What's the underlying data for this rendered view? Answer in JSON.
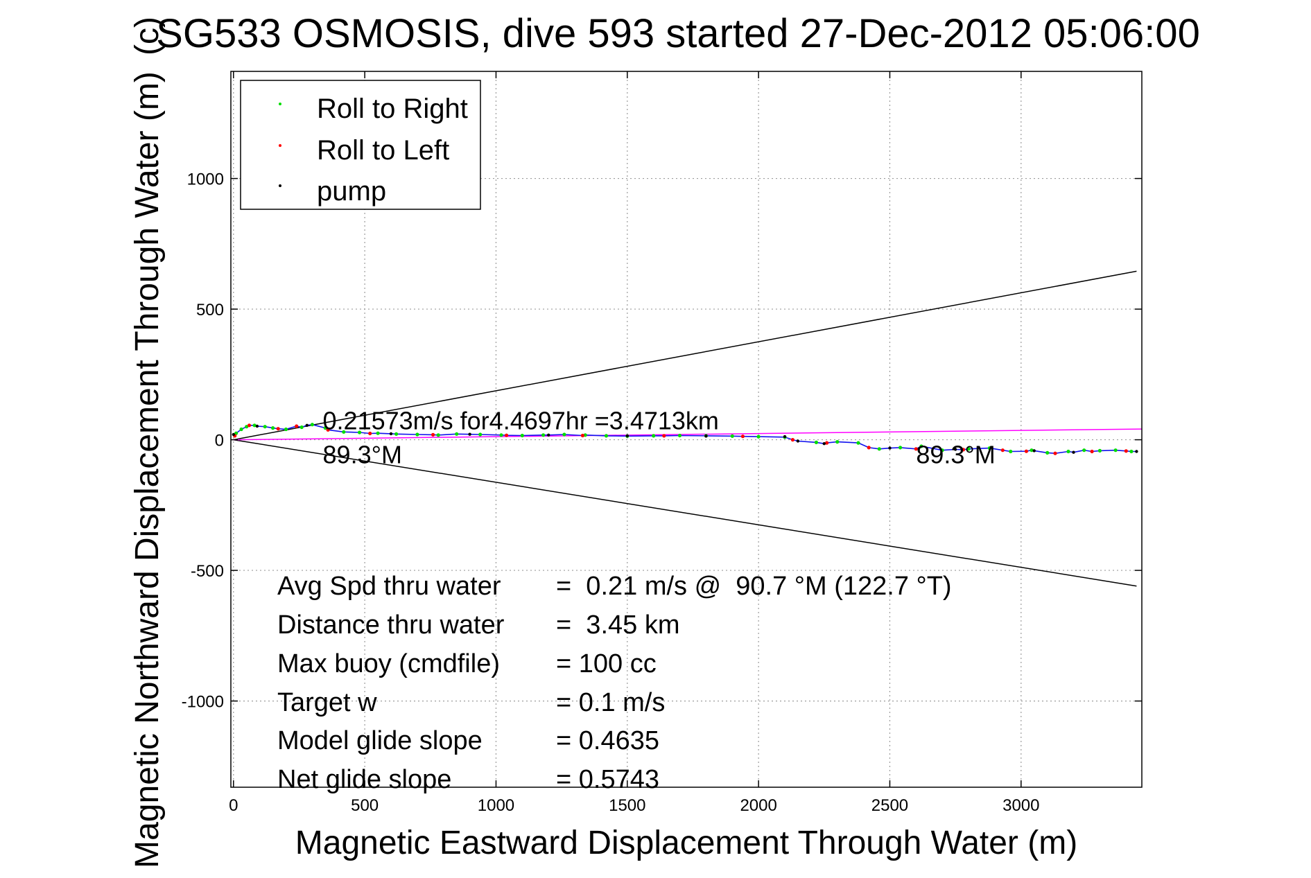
{
  "chart_data": {
    "type": "line",
    "title": "SG533 OSMOSIS, dive 593 started 27-Dec-2012 05:06:00",
    "title_overlap_text": "(c)",
    "xlabel": "Magnetic Eastward Displacement Through Water (m)",
    "ylabel": "Magnetic Northward Displacement Through Water (m)",
    "xlim": [
      -10,
      3460
    ],
    "ylim": [
      -1330,
      1410
    ],
    "xticks": [
      0,
      500,
      1000,
      1500,
      2000,
      2500,
      3000
    ],
    "xtick_labels": [
      "0",
      "500",
      "1000",
      "1500",
      "2000",
      "2500",
      "3000"
    ],
    "yticks": [
      -1000,
      -500,
      0,
      500,
      1000
    ],
    "ytick_labels": [
      "-1000",
      "-500",
      "0",
      "500",
      "1000"
    ],
    "grid": true,
    "legend_position": "top-left",
    "legend": [
      {
        "label": "Roll to Right",
        "color": "#00dd00"
      },
      {
        "label": "Roll to Left",
        "color": "#ff0000"
      },
      {
        "label": "pump",
        "color": "#000000"
      }
    ],
    "series": [
      {
        "name": "Roll to Right",
        "color": "#00dd00",
        "style": "markers",
        "x": [
          10,
          30,
          50,
          80,
          120,
          150,
          200,
          260,
          300,
          350,
          420,
          480,
          550,
          620,
          700,
          780,
          850,
          940,
          1020,
          1100,
          1180,
          1260,
          1340,
          1420,
          1500,
          1600,
          1700,
          1800,
          1900,
          2000,
          2100,
          2220,
          2300,
          2380,
          2460,
          2540,
          2620,
          2700,
          2800,
          2880,
          2960,
          3040,
          3100,
          3180,
          3240,
          3300,
          3360,
          3420
        ],
        "y": [
          25,
          40,
          50,
          55,
          50,
          45,
          40,
          48,
          58,
          45,
          30,
          28,
          25,
          22,
          20,
          18,
          22,
          20,
          18,
          16,
          18,
          20,
          18,
          15,
          14,
          15,
          16,
          15,
          14,
          12,
          10,
          -10,
          -8,
          -12,
          -35,
          -30,
          -25,
          -40,
          -35,
          -32,
          -45,
          -40,
          -50,
          -45,
          -40,
          -42,
          -40,
          -45
        ]
      },
      {
        "name": "Roll to Left",
        "color": "#ff0000",
        "style": "markers",
        "x": [
          5,
          60,
          170,
          240,
          360,
          520,
          760,
          1040,
          1330,
          1640,
          1940,
          2130,
          2260,
          2420,
          2600,
          2780,
          2930,
          3020,
          3130,
          3270,
          3400
        ],
        "y": [
          15,
          55,
          42,
          52,
          38,
          24,
          19,
          17,
          16,
          15,
          13,
          0,
          -12,
          -30,
          -35,
          -38,
          -40,
          -44,
          -52,
          -45,
          -43
        ]
      },
      {
        "name": "pump",
        "color": "#000000",
        "style": "markers",
        "x": [
          0,
          90,
          280,
          600,
          900,
          1200,
          1500,
          1800,
          2100,
          2150,
          2250,
          2500,
          2750,
          3050,
          3200,
          3440
        ],
        "y": [
          20,
          52,
          55,
          23,
          21,
          18,
          15,
          14,
          12,
          -5,
          -15,
          -32,
          -37,
          -42,
          -48,
          -45
        ]
      },
      {
        "name": "",
        "color": "#1010ee",
        "style": "line",
        "x": [
          0,
          10,
          30,
          50,
          60,
          80,
          90,
          120,
          150,
          170,
          200,
          240,
          260,
          280,
          300,
          350,
          360,
          420,
          480,
          520,
          550,
          600,
          620,
          700,
          760,
          780,
          850,
          900,
          940,
          1020,
          1040,
          1100,
          1180,
          1200,
          1260,
          1330,
          1340,
          1420,
          1500,
          1600,
          1640,
          1700,
          1800,
          1900,
          1940,
          2000,
          2100,
          2130,
          2150,
          2220,
          2250,
          2260,
          2300,
          2380,
          2420,
          2460,
          2500,
          2540,
          2600,
          2620,
          2700,
          2750,
          2780,
          2800,
          2880,
          2930,
          2960,
          3020,
          3040,
          3050,
          3100,
          3130,
          3180,
          3200,
          3240,
          3270,
          3300,
          3360,
          3400,
          3420,
          3440
        ],
        "y": [
          20,
          25,
          40,
          50,
          55,
          55,
          52,
          50,
          45,
          42,
          40,
          52,
          48,
          55,
          58,
          45,
          38,
          30,
          28,
          24,
          25,
          23,
          22,
          20,
          19,
          18,
          22,
          21,
          20,
          18,
          17,
          16,
          18,
          18,
          20,
          16,
          18,
          15,
          14,
          15,
          15,
          16,
          15,
          14,
          13,
          12,
          10,
          0,
          -5,
          -10,
          -15,
          -12,
          -8,
          -12,
          -30,
          -35,
          -32,
          -30,
          -35,
          -25,
          -40,
          -37,
          -38,
          -35,
          -32,
          -40,
          -45,
          -44,
          -40,
          -42,
          -50,
          -52,
          -45,
          -48,
          -40,
          -45,
          -42,
          -40,
          -43,
          -45,
          -45
        ]
      },
      {
        "name": "",
        "color": "#ff00ff",
        "style": "line",
        "x": [
          0,
          3460
        ],
        "y": [
          0,
          41
        ]
      },
      {
        "name": "",
        "color": "#000000",
        "style": "line",
        "x": [
          0,
          3440
        ],
        "y": [
          0,
          645
        ]
      },
      {
        "name": "",
        "color": "#000000",
        "style": "line",
        "x": [
          0,
          3440
        ],
        "y": [
          0,
          -560
        ]
      }
    ],
    "annotations": [
      {
        "text": "0.21573m/s for4.4697hr =3.4713km",
        "x": 340,
        "y": 40
      },
      {
        "text": "89.3°M",
        "x": 340,
        "y": -90
      },
      {
        "text": "89.3°M",
        "x": 2600,
        "y": -90
      }
    ],
    "stats": [
      {
        "label": "Avg Spd thru water",
        "value": "=  0.21 m/s @  90.7 °M (122.7 °T)"
      },
      {
        "label": "Distance thru water",
        "value": "=  3.45 km"
      },
      {
        "label": "Max buoy (cmdfile)",
        "value": "= 100 cc"
      },
      {
        "label": "Target w",
        "value": "= 0.1 m/s"
      },
      {
        "label": "Model glide slope",
        "value": "= 0.4635"
      },
      {
        "label": "Net glide slope",
        "value": "= 0.5743"
      }
    ]
  }
}
